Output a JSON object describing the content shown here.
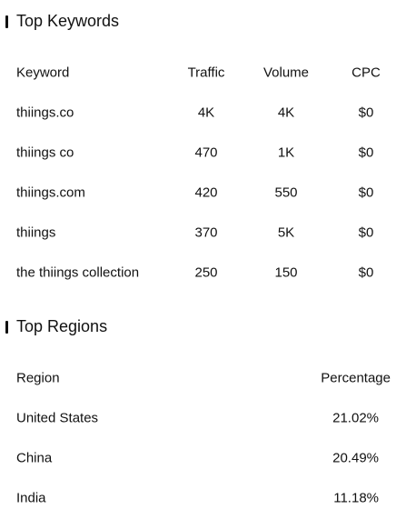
{
  "keywords_section": {
    "title": "Top Keywords",
    "headers": [
      "Keyword",
      "Traffic",
      "Volume",
      "CPC"
    ],
    "rows": [
      {
        "keyword": "thiings.co",
        "traffic": "4K",
        "volume": "4K",
        "cpc": "$0"
      },
      {
        "keyword": "thiings co",
        "traffic": "470",
        "volume": "1K",
        "cpc": "$0"
      },
      {
        "keyword": "thiings.com",
        "traffic": "420",
        "volume": "550",
        "cpc": "$0"
      },
      {
        "keyword": "thiings",
        "traffic": "370",
        "volume": "5K",
        "cpc": "$0"
      },
      {
        "keyword": "the thiings collection",
        "traffic": "250",
        "volume": "150",
        "cpc": "$0"
      }
    ]
  },
  "regions_section": {
    "title": "Top Regions",
    "headers": [
      "Region",
      "Percentage"
    ],
    "rows": [
      {
        "region": "United States",
        "percentage": "21.02%"
      },
      {
        "region": "China",
        "percentage": "20.49%"
      },
      {
        "region": "India",
        "percentage": "11.18%"
      }
    ]
  }
}
